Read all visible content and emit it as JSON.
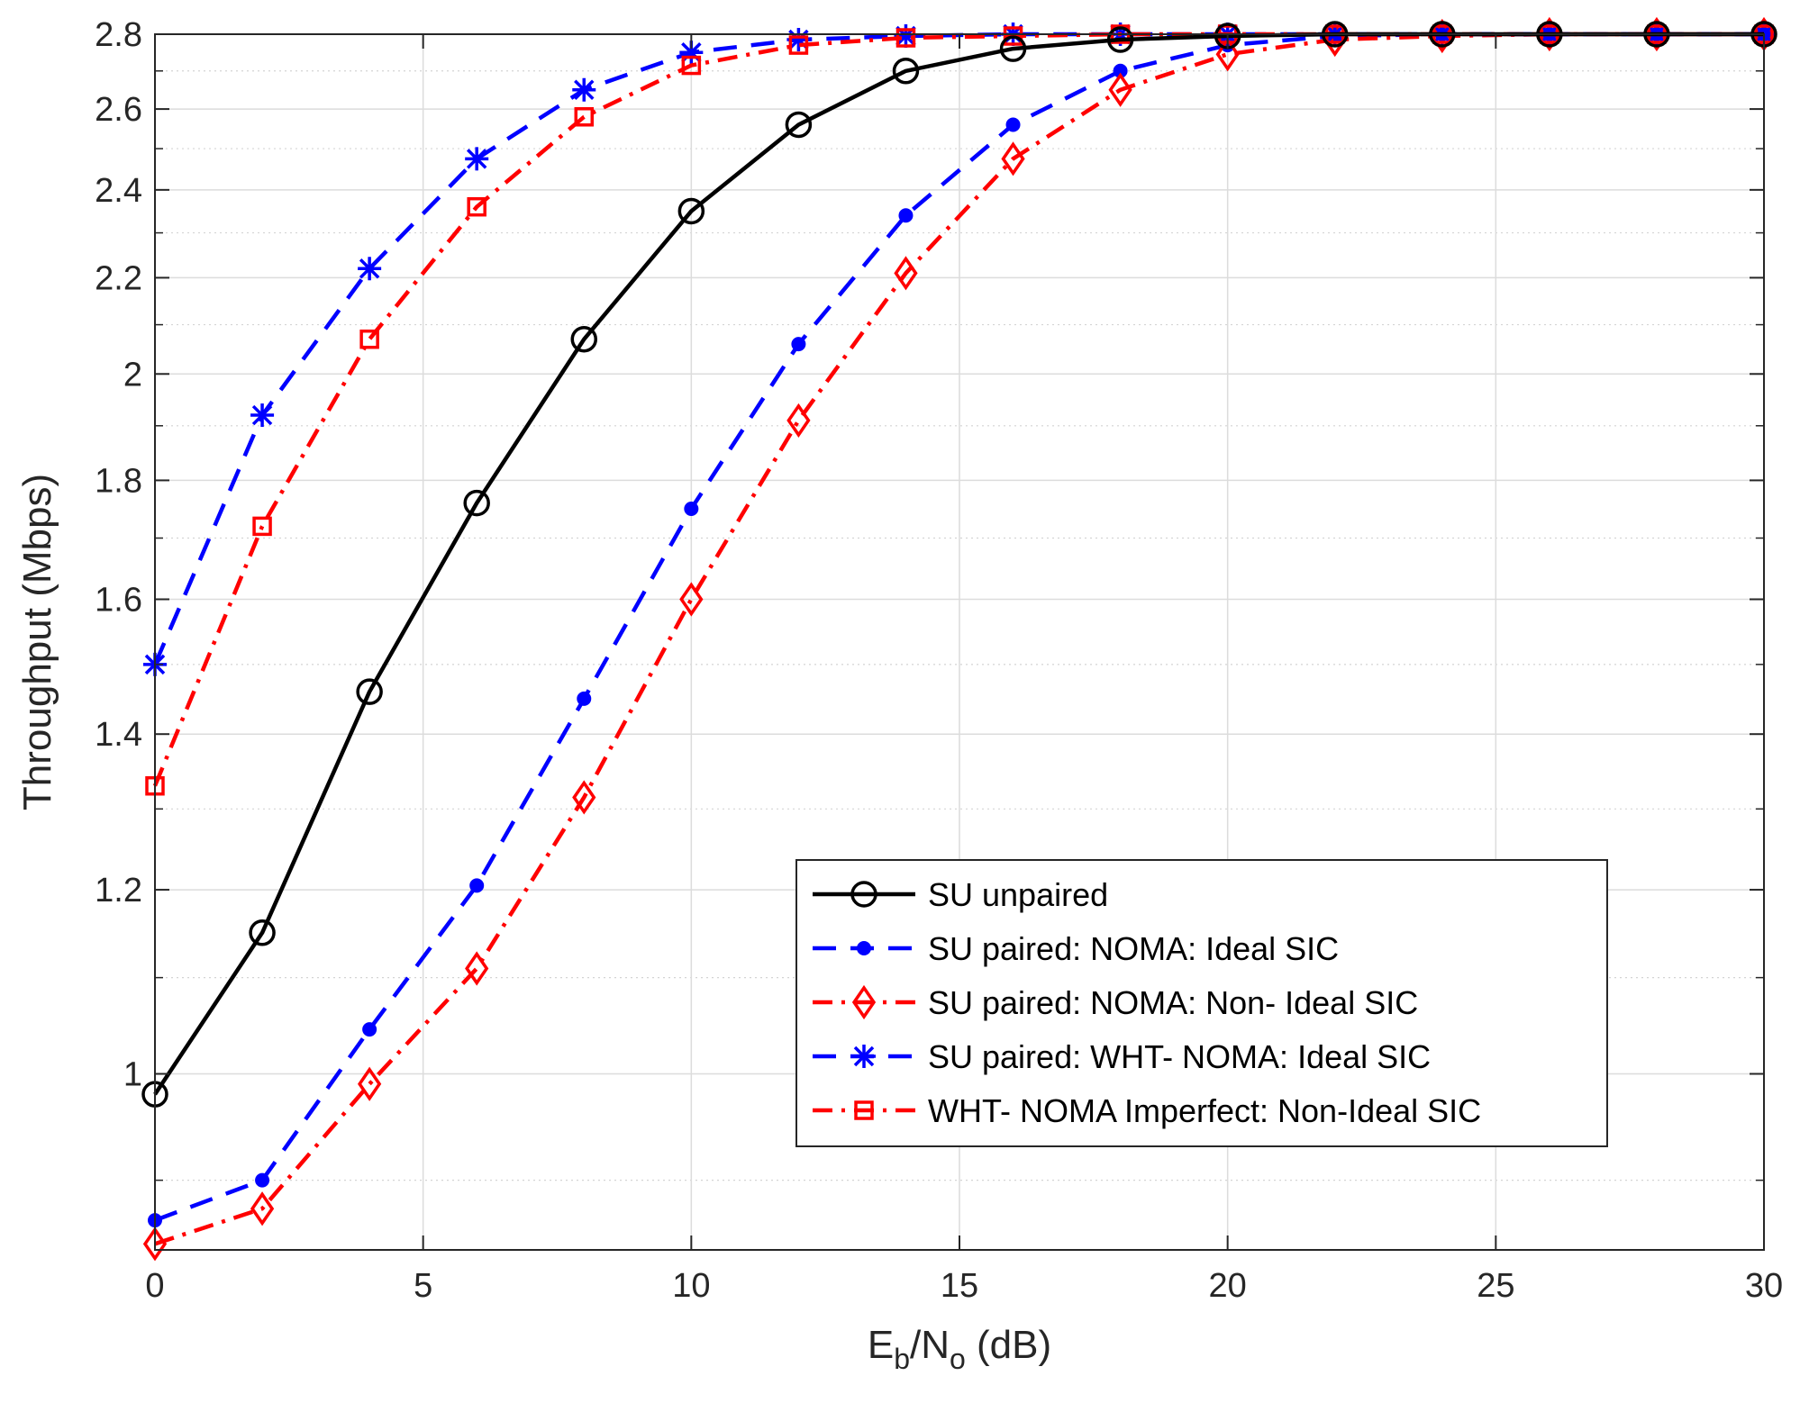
{
  "chart_data": {
    "type": "line",
    "title": "",
    "xlabel": {
      "main": "E",
      "sub1": "b",
      "mid": "/N",
      "sub2": "o",
      "tail": " (dB)"
    },
    "ylabel": "Throughput (Mbps)",
    "xlim": [
      0,
      30
    ],
    "ylim": [
      0.84,
      2.8
    ],
    "yscale": "log",
    "grid": true,
    "minor_grid": true,
    "legend_position": "lower-right",
    "x_ticks": [
      "0",
      "5",
      "10",
      "15",
      "20",
      "25",
      "30"
    ],
    "x_tick_values": [
      0,
      5,
      10,
      15,
      20,
      25,
      30
    ],
    "y_ticks": [
      "1",
      "1.2",
      "1.4",
      "1.6",
      "1.8",
      "2",
      "2.2",
      "2.4",
      "2.6",
      "2.8"
    ],
    "y_tick_values": [
      1,
      1.2,
      1.4,
      1.6,
      1.8,
      2,
      2.2,
      2.4,
      2.6,
      2.8
    ],
    "x": [
      0,
      2,
      4,
      6,
      8,
      10,
      12,
      14,
      16,
      18,
      20,
      22,
      24,
      26,
      28,
      30
    ],
    "series": [
      {
        "name": "SU unpaired",
        "color": "#000000",
        "line": "solid",
        "marker": "circle",
        "values": [
          0.98,
          1.15,
          1.46,
          1.76,
          2.07,
          2.35,
          2.56,
          2.7,
          2.76,
          2.785,
          2.795,
          2.8,
          2.8,
          2.8,
          2.8,
          2.8
        ]
      },
      {
        "name": "SU paired: NOMA: Ideal SIC",
        "color": "#0000ff",
        "line": "dashed",
        "marker": "dot",
        "values": [
          0.865,
          0.9,
          1.045,
          1.205,
          1.45,
          1.75,
          2.06,
          2.34,
          2.56,
          2.7,
          2.77,
          2.795,
          2.8,
          2.8,
          2.8,
          2.8
        ]
      },
      {
        "name": "SU paired: NOMA: Non- Ideal SIC",
        "color": "#ff0000",
        "line": "dashdot",
        "marker": "diamond",
        "values": [
          0.845,
          0.875,
          0.99,
          1.11,
          1.315,
          1.6,
          1.91,
          2.21,
          2.475,
          2.65,
          2.745,
          2.785,
          2.795,
          2.8,
          2.8,
          2.8
        ]
      },
      {
        "name": "SU paired: WHT- NOMA: Ideal SIC",
        "color": "#0000ff",
        "line": "dashed",
        "marker": "asterisk",
        "values": [
          1.5,
          1.92,
          2.22,
          2.475,
          2.65,
          2.75,
          2.785,
          2.795,
          2.8,
          2.8,
          2.8,
          2.8,
          2.8,
          2.8,
          2.8,
          2.8
        ]
      },
      {
        "name": "WHT- NOMA Imperfect: Non-Ideal SIC",
        "color": "#ff0000",
        "line": "dashdot",
        "marker": "square",
        "values": [
          1.33,
          1.72,
          2.07,
          2.36,
          2.58,
          2.715,
          2.77,
          2.79,
          2.795,
          2.8,
          2.8,
          2.8,
          2.8,
          2.8,
          2.8,
          2.8
        ]
      }
    ]
  }
}
